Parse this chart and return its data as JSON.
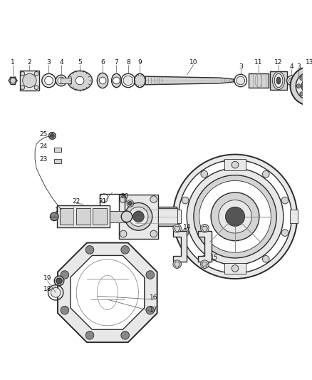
{
  "background_color": "#ffffff",
  "fig_width": 4.38,
  "fig_height": 5.33,
  "dpi": 100,
  "line_color": "#2a2a2a",
  "gray_dark": "#555555",
  "gray_med": "#888888",
  "gray_light": "#bbbbbb",
  "gray_fill": "#d4d4d4",
  "gray_light_fill": "#e8e8e8",
  "label_font_size": 6.5,
  "label_color": "#111111",
  "leader_color": "#555555"
}
